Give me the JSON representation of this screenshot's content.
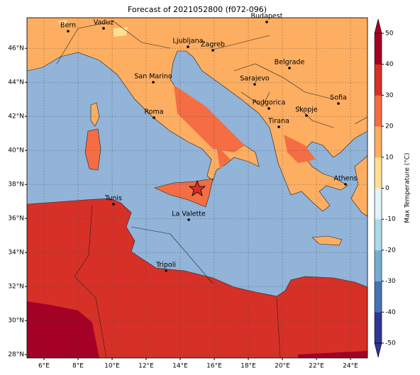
{
  "title": "Forecast of 2021052800 (f072-096)",
  "map": {
    "lon_lim": [
      5,
      25
    ],
    "lat_lim": [
      27.8,
      47.8
    ],
    "lon_ticks": [
      {
        "value": 6,
        "label": "6°E"
      },
      {
        "value": 8,
        "label": "8°E"
      },
      {
        "value": 10,
        "label": "10°E"
      },
      {
        "value": 12,
        "label": "12°E"
      },
      {
        "value": 14,
        "label": "14°E"
      },
      {
        "value": 16,
        "label": "16°E"
      },
      {
        "value": 18,
        "label": "18°E"
      },
      {
        "value": 20,
        "label": "20°E"
      },
      {
        "value": 22,
        "label": "22°E"
      },
      {
        "value": 24,
        "label": "24°E"
      }
    ],
    "lat_ticks": [
      {
        "value": 28,
        "label": "28°N"
      },
      {
        "value": 30,
        "label": "30°N"
      },
      {
        "value": 32,
        "label": "32°N"
      },
      {
        "value": 34,
        "label": "34°N"
      },
      {
        "value": 36,
        "label": "36°N"
      },
      {
        "value": 38,
        "label": "38°N"
      },
      {
        "value": 40,
        "label": "40°N"
      },
      {
        "value": 42,
        "label": "42°N"
      },
      {
        "value": 44,
        "label": "44°N"
      },
      {
        "value": 46,
        "label": "46°N"
      }
    ],
    "cities": [
      "Bern",
      "Vaduz",
      "Budapest",
      "Ljubljana",
      "Zagreb",
      "San Marino",
      "Belgrade",
      "Sarajevo",
      "Sofia",
      "Podgorica",
      "Skopje",
      "Roma",
      "Tirana",
      "Athens",
      "Tunis",
      "La Valette",
      "Tripoli"
    ]
  },
  "colorbar": {
    "label": "Max Temperature (°C)",
    "lim": [
      -50,
      50
    ],
    "ticks": [
      50,
      40,
      30,
      20,
      10,
      0,
      -10,
      -20,
      -30,
      -40,
      -50
    ],
    "colors": [
      "#313695",
      "#4575b4",
      "#74add1",
      "#abd9e9",
      "#e0f3f8",
      "#fee090",
      "#fdae61",
      "#f46d43",
      "#d73027",
      "#a50026"
    ]
  }
}
